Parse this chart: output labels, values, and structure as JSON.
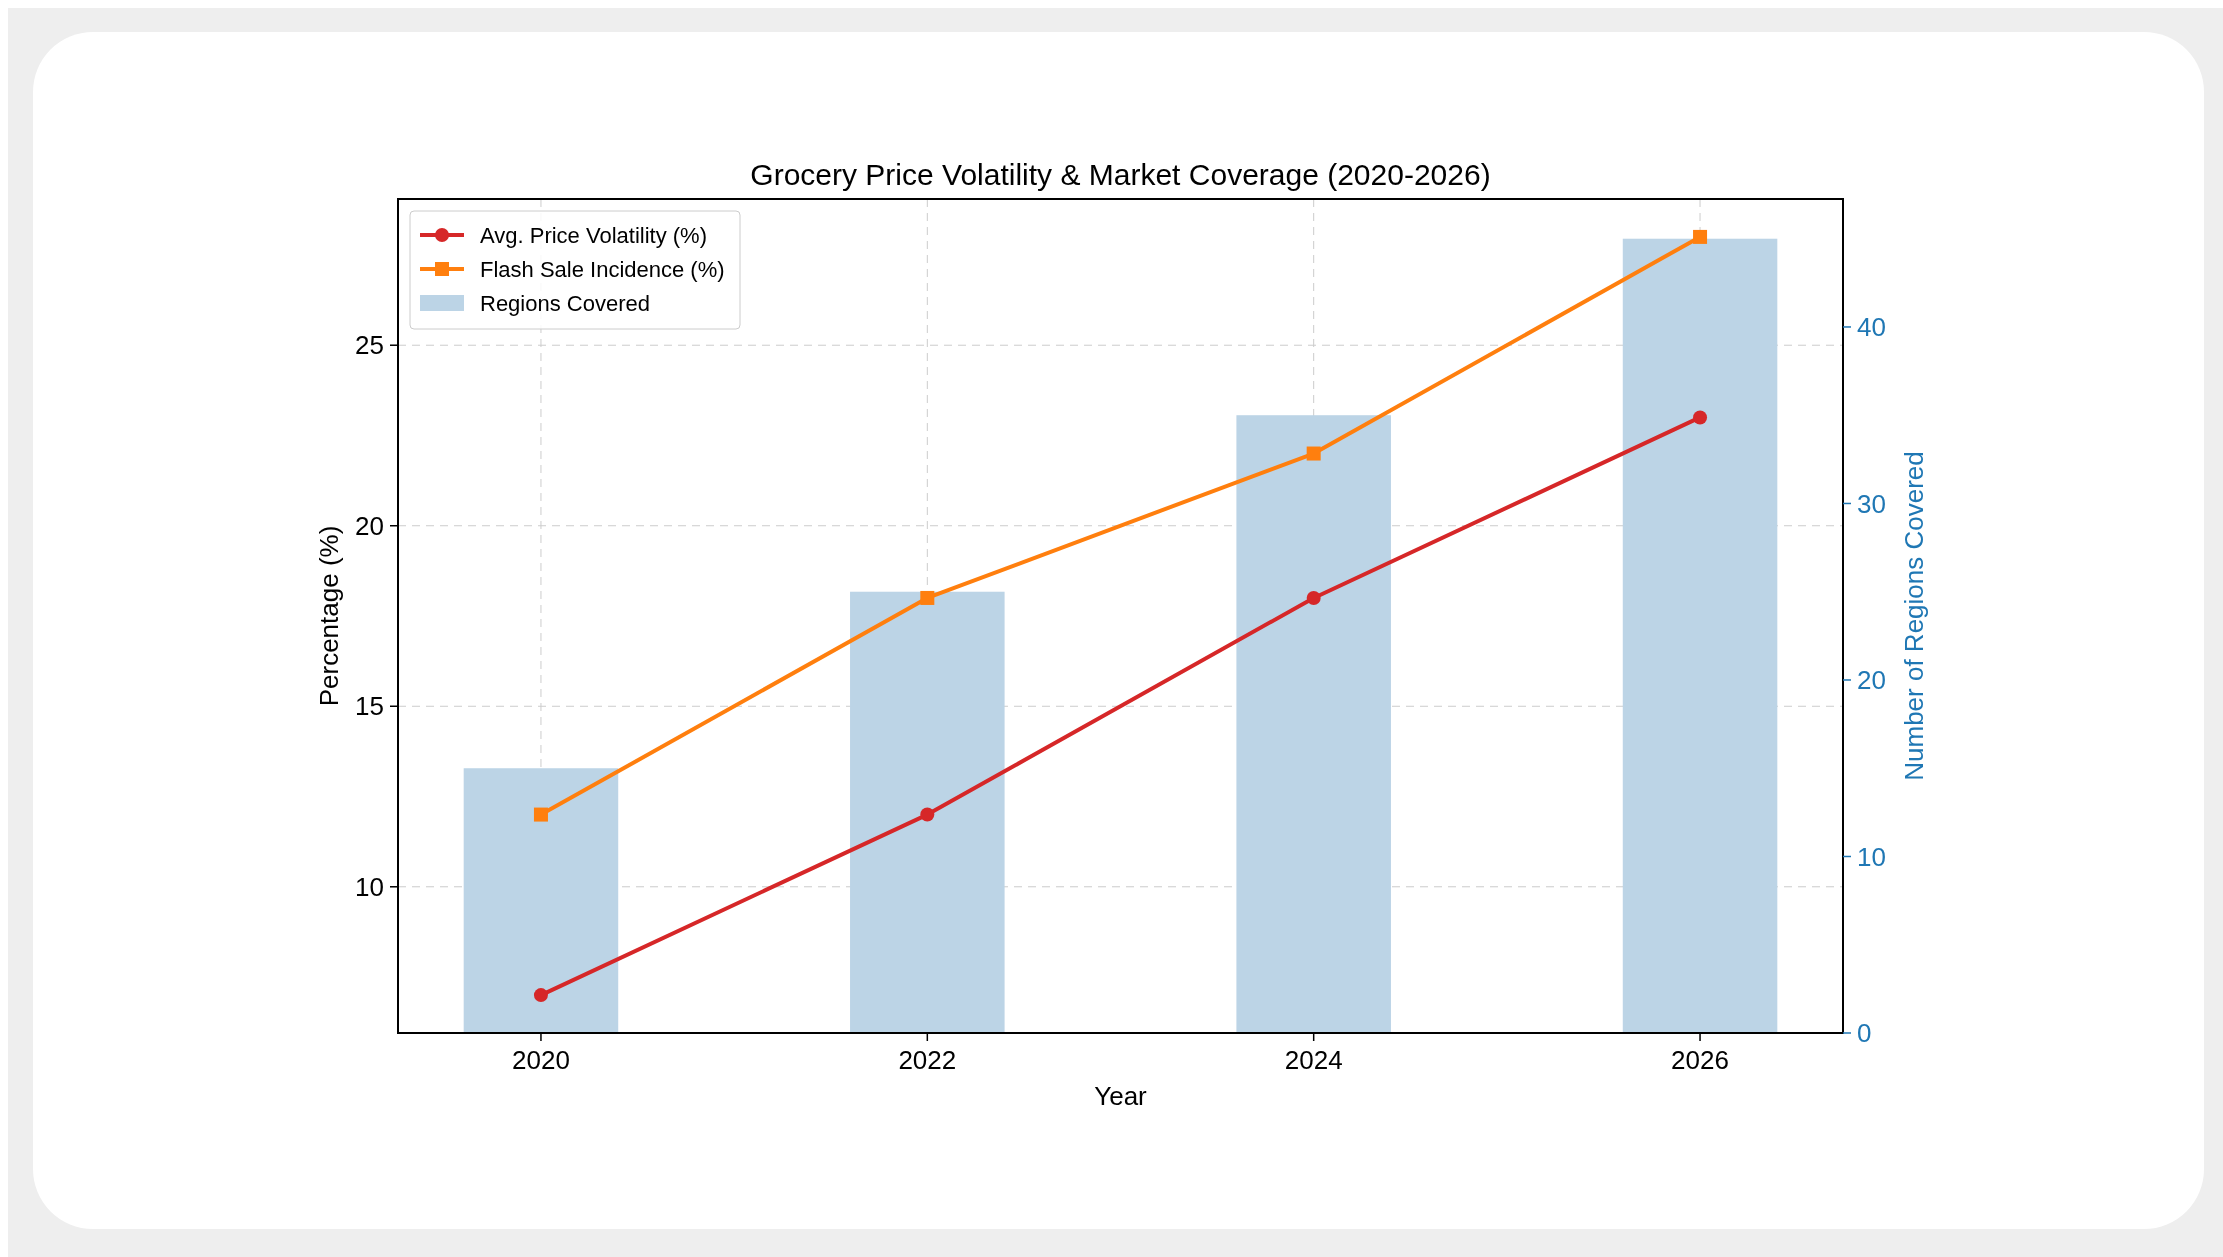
{
  "chart_data": {
    "type": "line",
    "title": "Grocery Price Volatility & Market Coverage (2020-2026)",
    "xlabel": "Year",
    "ylabel": "Percentage (%)",
    "y2label": "Number of Regions Covered",
    "x": [
      2020,
      2022,
      2024,
      2026
    ],
    "xlim": [
      2019.26,
      2026.74
    ],
    "xticks": [
      2020,
      2022,
      2024,
      2026
    ],
    "ylim": [
      5.95,
      29.05
    ],
    "yticks": [
      10,
      15,
      20,
      25
    ],
    "y2lim": [
      0,
      47.25
    ],
    "y2ticks": [
      0,
      10,
      20,
      30,
      40
    ],
    "series": [
      {
        "name": "Regions Covered",
        "type": "bar",
        "axis": "y2",
        "color": "#bcd4e6",
        "values": [
          15,
          25,
          35,
          45
        ]
      },
      {
        "name": "Avg. Price Volatility (%)",
        "color": "#d62728",
        "marker": "circle",
        "values": [
          7,
          12,
          18,
          23
        ]
      },
      {
        "name": "Flash Sale Incidence (%)",
        "color": "#ff7f0e",
        "marker": "square",
        "values": [
          12,
          18,
          22,
          28
        ]
      }
    ],
    "grid": true,
    "line_style": "solid",
    "legend": "top left"
  }
}
